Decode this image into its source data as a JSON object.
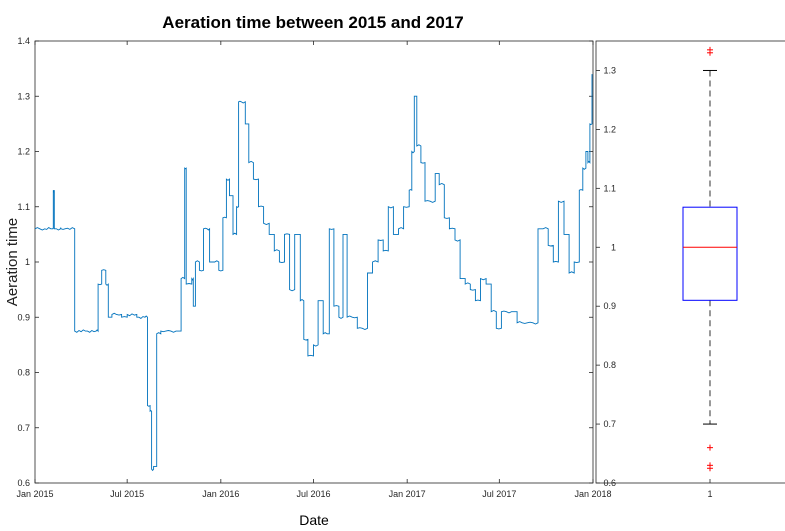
{
  "chart_data": [
    {
      "type": "line",
      "title": "Aeration time between 2015 and 2017",
      "xlabel": "Date",
      "ylabel": "Aeration time",
      "xlim": [
        "2015-01-01",
        "2018-01-01"
      ],
      "ylim": [
        0.6,
        1.4
      ],
      "grid": false,
      "x_ticks": [
        {
          "date": "2015-01-01",
          "label": "Jan 2015"
        },
        {
          "date": "2015-07-01",
          "label": "Jul 2015"
        },
        {
          "date": "2016-01-01",
          "label": "Jan 2016"
        },
        {
          "date": "2016-07-01",
          "label": "Jul 2016"
        },
        {
          "date": "2017-01-01",
          "label": "Jan 2017"
        },
        {
          "date": "2017-07-01",
          "label": "Jul 2017"
        },
        {
          "date": "2018-01-01",
          "label": "Jan 2018"
        }
      ],
      "y_ticks": [
        0.6,
        0.7,
        0.8,
        0.9,
        1,
        1.1,
        1.2,
        1.3,
        1.4
      ],
      "series_color": "#0072bd",
      "x": [
        "2015-01-01",
        "2015-01-20",
        "2015-02-05",
        "2015-02-06",
        "2015-02-08",
        "2015-02-20",
        "2015-02-21",
        "2015-03-01",
        "2015-03-20",
        "2015-04-10",
        "2015-05-01",
        "2015-05-05",
        "2015-05-12",
        "2015-05-20",
        "2015-05-25",
        "2015-06-01",
        "2015-06-10",
        "2015-06-20",
        "2015-07-01",
        "2015-07-20",
        "2015-08-05",
        "2015-08-10",
        "2015-08-15",
        "2015-08-18",
        "2015-08-22",
        "2015-08-28",
        "2015-09-05",
        "2015-09-15",
        "2015-09-25",
        "2015-10-05",
        "2015-10-15",
        "2015-10-22",
        "2015-10-25",
        "2015-11-05",
        "2015-11-08",
        "2015-11-12",
        "2015-11-20",
        "2015-11-28",
        "2015-12-05",
        "2015-12-10",
        "2015-12-20",
        "2015-12-28",
        "2016-01-05",
        "2016-01-12",
        "2016-01-18",
        "2016-01-25",
        "2016-02-01",
        "2016-02-05",
        "2016-02-10",
        "2016-02-18",
        "2016-02-25",
        "2016-03-05",
        "2016-03-15",
        "2016-03-25",
        "2016-04-05",
        "2016-04-15",
        "2016-04-25",
        "2016-05-05",
        "2016-05-15",
        "2016-05-25",
        "2016-06-05",
        "2016-06-12",
        "2016-06-20",
        "2016-07-01",
        "2016-07-10",
        "2016-07-20",
        "2016-08-01",
        "2016-08-10",
        "2016-08-20",
        "2016-08-28",
        "2016-09-05",
        "2016-09-15",
        "2016-09-25",
        "2016-10-05",
        "2016-10-15",
        "2016-10-25",
        "2016-11-05",
        "2016-11-15",
        "2016-11-25",
        "2016-12-05",
        "2016-12-15",
        "2016-12-25",
        "2017-01-05",
        "2017-01-10",
        "2017-01-15",
        "2017-01-20",
        "2017-01-28",
        "2017-02-05",
        "2017-02-15",
        "2017-02-25",
        "2017-03-05",
        "2017-03-15",
        "2017-03-25",
        "2017-04-05",
        "2017-04-15",
        "2017-04-25",
        "2017-05-05",
        "2017-05-15",
        "2017-05-25",
        "2017-06-05",
        "2017-06-15",
        "2017-06-25",
        "2017-07-05",
        "2017-07-15",
        "2017-07-25",
        "2017-08-05",
        "2017-08-15",
        "2017-08-25",
        "2017-09-05",
        "2017-09-15",
        "2017-09-25",
        "2017-10-05",
        "2017-10-15",
        "2017-10-25",
        "2017-11-05",
        "2017-11-15",
        "2017-11-25",
        "2017-12-05",
        "2017-12-12",
        "2017-12-18",
        "2017-12-22",
        "2017-12-26",
        "2017-12-30"
      ],
      "y": [
        1.06,
        1.06,
        1.06,
        1.13,
        1.06,
        1.06,
        1.06,
        1.06,
        0.875,
        0.875,
        0.875,
        0.96,
        0.985,
        0.96,
        0.9,
        0.905,
        0.905,
        0.9,
        0.905,
        0.9,
        0.9,
        0.74,
        0.73,
        0.625,
        0.63,
        0.87,
        0.875,
        0.875,
        0.875,
        0.875,
        0.97,
        1.17,
        0.96,
        0.97,
        0.92,
        1.0,
        0.985,
        1.06,
        1.06,
        1.0,
        1.0,
        0.985,
        1.08,
        1.15,
        1.12,
        1.05,
        1.1,
        1.29,
        1.29,
        1.25,
        1.18,
        1.15,
        1.1,
        1.07,
        1.05,
        1.02,
        1.0,
        1.05,
        0.95,
        1.05,
        0.93,
        0.86,
        0.83,
        0.85,
        0.93,
        0.87,
        1.06,
        0.92,
        0.9,
        1.05,
        0.9,
        0.9,
        0.88,
        0.88,
        0.98,
        1.0,
        1.04,
        1.02,
        1.1,
        1.05,
        1.06,
        1.1,
        1.13,
        1.2,
        1.3,
        1.21,
        1.18,
        1.11,
        1.11,
        1.16,
        1.14,
        1.08,
        1.06,
        1.04,
        0.97,
        0.96,
        0.95,
        0.93,
        0.97,
        0.96,
        0.91,
        0.88,
        0.91,
        0.91,
        0.91,
        0.89,
        0.89,
        0.89,
        0.89,
        1.06,
        1.06,
        1.03,
        1.0,
        1.11,
        1.05,
        0.98,
        1.0,
        1.13,
        1.17,
        1.2,
        1.18,
        1.25,
        1.34
      ]
    },
    {
      "type": "box",
      "categories": [
        "1"
      ],
      "ylim": [
        0.6,
        1.35
      ],
      "y_ticks": [
        0.6,
        0.7,
        0.8,
        0.9,
        1,
        1.1,
        1.2,
        1.3
      ],
      "whisker_low": 0.7,
      "q1": 0.91,
      "median": 1.0,
      "q3": 1.068,
      "whisker_high": 1.3,
      "outliers_high": [
        1.33,
        1.335
      ],
      "outliers_low": [
        0.66,
        0.63,
        0.625
      ],
      "box_color": "#0000ff",
      "median_color": "#ff0000",
      "outlier_color": "#ff0000"
    }
  ]
}
